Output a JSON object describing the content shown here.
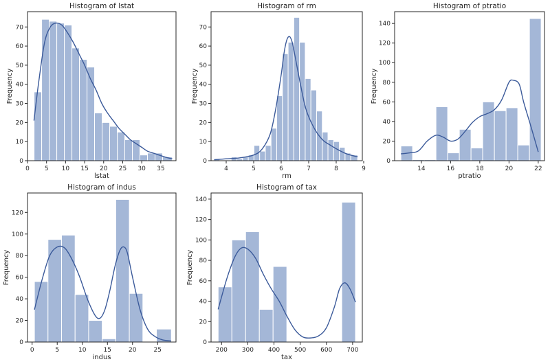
{
  "figure": {
    "background": "#ffffff",
    "bar_color": "#a4b7d7",
    "bar_edge": "#ffffff",
    "kde_color": "#3b5a9a",
    "axis_color": "#262626"
  },
  "chart_data": [
    {
      "type": "bar",
      "title": "Histogram of lstat",
      "xlabel": "lstat",
      "ylabel": "Frequency",
      "xlim": [
        0,
        39
      ],
      "ylim": [
        0,
        78
      ],
      "xticks": [
        0,
        5,
        10,
        15,
        20,
        25,
        30,
        35
      ],
      "yticks": [
        0,
        10,
        20,
        30,
        40,
        50,
        60,
        70
      ],
      "bins": [
        {
          "x0": 1.73,
          "x1": 3.72,
          "count": 36
        },
        {
          "x0": 3.72,
          "x1": 5.7,
          "count": 74
        },
        {
          "x0": 5.7,
          "x1": 7.69,
          "count": 73
        },
        {
          "x0": 7.69,
          "x1": 9.67,
          "count": 72
        },
        {
          "x0": 9.67,
          "x1": 11.66,
          "count": 71
        },
        {
          "x0": 11.66,
          "x1": 13.64,
          "count": 59
        },
        {
          "x0": 13.64,
          "x1": 15.63,
          "count": 53
        },
        {
          "x0": 15.63,
          "x1": 17.61,
          "count": 49
        },
        {
          "x0": 17.61,
          "x1": 19.6,
          "count": 25
        },
        {
          "x0": 19.6,
          "x1": 21.58,
          "count": 20
        },
        {
          "x0": 21.58,
          "x1": 23.57,
          "count": 18
        },
        {
          "x0": 23.57,
          "x1": 25.55,
          "count": 15
        },
        {
          "x0": 25.55,
          "x1": 27.54,
          "count": 11
        },
        {
          "x0": 27.54,
          "x1": 29.52,
          "count": 11
        },
        {
          "x0": 29.52,
          "x1": 31.51,
          "count": 3
        },
        {
          "x0": 31.51,
          "x1": 33.49,
          "count": 4
        },
        {
          "x0": 33.49,
          "x1": 35.48,
          "count": 4
        },
        {
          "x0": 35.48,
          "x1": 37.97,
          "count": 2
        }
      ],
      "kde": {
        "x": [
          1.7,
          3,
          4.5,
          6,
          7.5,
          9,
          10.5,
          12,
          13.5,
          15,
          16.5,
          18,
          19.5,
          21,
          22.5,
          24,
          25.5,
          27,
          28.5,
          30,
          31.5,
          33,
          34.5,
          36,
          38
        ],
        "y": [
          21,
          42,
          62,
          70,
          72,
          71,
          67,
          62,
          56,
          50,
          43,
          37,
          30,
          25,
          21,
          17,
          14,
          11,
          9,
          7,
          5,
          4,
          3,
          2,
          1
        ]
      }
    },
    {
      "type": "bar",
      "title": "Histogram of rm",
      "xlabel": "rm",
      "ylabel": "Frequency",
      "xlim": [
        3.45,
        8.95
      ],
      "ylim": [
        0,
        78
      ],
      "xticks": [
        4,
        5,
        6,
        7,
        8,
        9
      ],
      "yticks": [
        0,
        10,
        20,
        30,
        40,
        50,
        60,
        70
      ],
      "bins": [
        {
          "x0": 3.561,
          "x1": 3.768,
          "count": 1
        },
        {
          "x0": 3.768,
          "x1": 3.975,
          "count": 0
        },
        {
          "x0": 3.975,
          "x1": 4.182,
          "count": 0
        },
        {
          "x0": 4.182,
          "x1": 4.389,
          "count": 2
        },
        {
          "x0": 4.389,
          "x1": 4.596,
          "count": 1
        },
        {
          "x0": 4.596,
          "x1": 4.803,
          "count": 2
        },
        {
          "x0": 4.803,
          "x1": 5.01,
          "count": 3
        },
        {
          "x0": 5.01,
          "x1": 5.217,
          "count": 8
        },
        {
          "x0": 5.217,
          "x1": 5.424,
          "count": 5
        },
        {
          "x0": 5.424,
          "x1": 5.631,
          "count": 8
        },
        {
          "x0": 5.631,
          "x1": 5.838,
          "count": 17
        },
        {
          "x0": 5.838,
          "x1": 6.045,
          "count": 34
        },
        {
          "x0": 6.045,
          "x1": 6.252,
          "count": 56
        },
        {
          "x0": 6.252,
          "x1": 6.459,
          "count": 62
        },
        {
          "x0": 6.459,
          "x1": 6.666,
          "count": 75
        },
        {
          "x0": 6.666,
          "x1": 6.873,
          "count": 62
        },
        {
          "x0": 6.873,
          "x1": 7.08,
          "count": 43
        },
        {
          "x0": 7.08,
          "x1": 7.287,
          "count": 37
        },
        {
          "x0": 7.287,
          "x1": 7.494,
          "count": 26
        },
        {
          "x0": 7.494,
          "x1": 7.701,
          "count": 15
        },
        {
          "x0": 7.701,
          "x1": 7.908,
          "count": 11
        },
        {
          "x0": 7.908,
          "x1": 8.115,
          "count": 10
        },
        {
          "x0": 8.115,
          "x1": 8.322,
          "count": 7
        },
        {
          "x0": 8.322,
          "x1": 8.529,
          "count": 4
        },
        {
          "x0": 8.529,
          "x1": 8.78,
          "count": 3
        }
      ],
      "kde": {
        "x": [
          3.56,
          4,
          4.5,
          5,
          5.3,
          5.6,
          5.8,
          6,
          6.1,
          6.2,
          6.3,
          6.4,
          6.5,
          6.7,
          6.9,
          7.2,
          7.5,
          7.8,
          8.1,
          8.4,
          8.78
        ],
        "y": [
          0.5,
          1,
          1.5,
          3,
          6,
          14,
          27,
          45,
          56,
          63,
          65,
          62,
          55,
          40,
          27,
          17,
          11,
          8,
          5.5,
          3.5,
          2
        ]
      }
    },
    {
      "type": "bar",
      "title": "Histogram of ptratio",
      "xlabel": "ptratio",
      "ylabel": "Frequency",
      "xlim": [
        12.17,
        22.43
      ],
      "ylim": [
        0,
        152
      ],
      "xticks": [
        14,
        16,
        18,
        20,
        22
      ],
      "yticks": [
        0,
        20,
        40,
        60,
        80,
        100,
        120,
        140
      ],
      "bins": [
        {
          "x0": 12.6,
          "x1": 13.4,
          "count": 15
        },
        {
          "x0": 13.4,
          "x1": 14.2,
          "count": 1
        },
        {
          "x0": 14.2,
          "x1": 15,
          "count": 1
        },
        {
          "x0": 15,
          "x1": 15.8,
          "count": 55
        },
        {
          "x0": 15.8,
          "x1": 16.6,
          "count": 8
        },
        {
          "x0": 16.6,
          "x1": 17.4,
          "count": 32
        },
        {
          "x0": 17.4,
          "x1": 18.2,
          "count": 13
        },
        {
          "x0": 18.2,
          "x1": 19,
          "count": 60
        },
        {
          "x0": 19,
          "x1": 19.8,
          "count": 51
        },
        {
          "x0": 19.8,
          "x1": 20.6,
          "count": 54
        },
        {
          "x0": 20.6,
          "x1": 21.4,
          "count": 16
        },
        {
          "x0": 21.4,
          "x1": 22.2,
          "count": 145
        }
      ],
      "kde": {
        "x": [
          12.6,
          13.2,
          13.8,
          14.4,
          15,
          15.5,
          16,
          16.5,
          17,
          17.5,
          18,
          18.5,
          19,
          19.5,
          20,
          20.3,
          20.7,
          21,
          21.5,
          22
        ],
        "y": [
          7,
          8,
          10,
          20,
          26,
          24,
          20,
          22,
          30,
          39,
          45,
          48,
          52,
          62,
          80,
          82,
          78,
          60,
          35,
          9
        ]
      }
    },
    {
      "type": "bar",
      "title": "Histogram of indus",
      "xlabel": "indus",
      "ylabel": "Frequency",
      "xlim": [
        -0.92,
        28.66
      ],
      "ylim": [
        0,
        138
      ],
      "xticks": [
        0,
        5,
        10,
        15,
        20,
        25
      ],
      "yticks": [
        0,
        20,
        40,
        60,
        80,
        100,
        120
      ],
      "bins": [
        {
          "x0": 0.46,
          "x1": 3.16,
          "count": 56
        },
        {
          "x0": 3.16,
          "x1": 5.86,
          "count": 95
        },
        {
          "x0": 5.86,
          "x1": 8.56,
          "count": 99
        },
        {
          "x0": 8.56,
          "x1": 11.26,
          "count": 44
        },
        {
          "x0": 11.26,
          "x1": 13.96,
          "count": 20
        },
        {
          "x0": 13.96,
          "x1": 16.66,
          "count": 3
        },
        {
          "x0": 16.66,
          "x1": 19.36,
          "count": 132
        },
        {
          "x0": 19.36,
          "x1": 22.06,
          "count": 45
        },
        {
          "x0": 22.06,
          "x1": 24.76,
          "count": 0
        },
        {
          "x0": 24.76,
          "x1": 27.74,
          "count": 12
        }
      ],
      "kde": {
        "x": [
          0.46,
          2,
          3.5,
          5,
          6.5,
          8,
          9.5,
          11,
          12.5,
          13.5,
          14.5,
          15.5,
          16.5,
          17.5,
          18.3,
          19,
          20,
          21.5,
          23,
          24.5,
          26,
          27.7
        ],
        "y": [
          30,
          58,
          80,
          88,
          87,
          76,
          60,
          40,
          25,
          22,
          30,
          48,
          70,
          85,
          88,
          82,
          60,
          30,
          12,
          5,
          2,
          1
        ]
      }
    },
    {
      "type": "bar",
      "title": "Histogram of tax",
      "xlabel": "tax",
      "ylabel": "Frequency",
      "xlim": [
        160,
        737
      ],
      "ylim": [
        0,
        146
      ],
      "xticks": [
        200,
        300,
        400,
        500,
        600,
        700
      ],
      "yticks": [
        0,
        20,
        40,
        60,
        80,
        100,
        120,
        140
      ],
      "bins": [
        {
          "x0": 187,
          "x1": 239.4,
          "count": 54
        },
        {
          "x0": 239.4,
          "x1": 291.8,
          "count": 100
        },
        {
          "x0": 291.8,
          "x1": 344.2,
          "count": 108
        },
        {
          "x0": 344.2,
          "x1": 396.6,
          "count": 32
        },
        {
          "x0": 396.6,
          "x1": 449,
          "count": 74
        },
        {
          "x0": 449,
          "x1": 501.4,
          "count": 0
        },
        {
          "x0": 501.4,
          "x1": 553.8,
          "count": 0
        },
        {
          "x0": 553.8,
          "x1": 606.2,
          "count": 0
        },
        {
          "x0": 606.2,
          "x1": 658.6,
          "count": 0
        },
        {
          "x0": 658.6,
          "x1": 711,
          "count": 137
        }
      ],
      "kde": {
        "x": [
          187,
          220,
          250,
          275,
          300,
          330,
          360,
          390,
          420,
          450,
          480,
          510,
          540,
          570,
          600,
          630,
          650,
          670,
          690,
          711
        ],
        "y": [
          32,
          62,
          83,
          92,
          91,
          82,
          66,
          52,
          40,
          25,
          12,
          5,
          4,
          6,
          14,
          34,
          52,
          58,
          52,
          39
        ]
      }
    }
  ]
}
